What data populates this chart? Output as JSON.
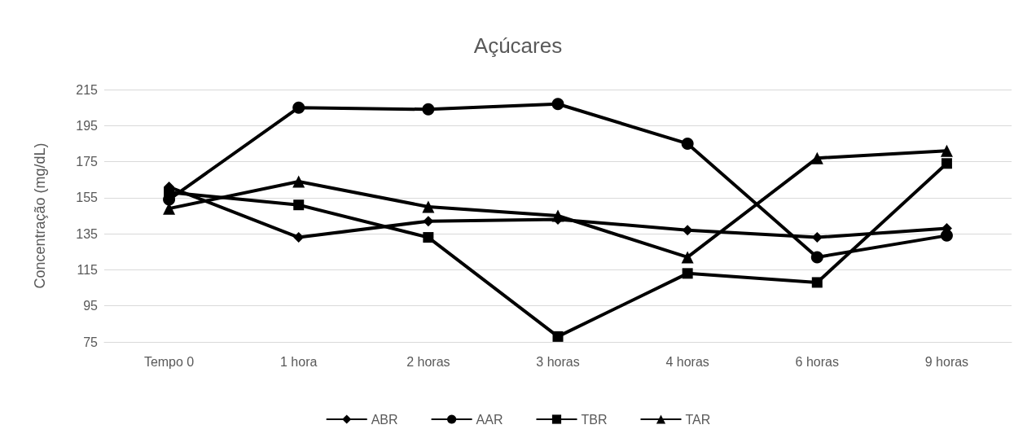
{
  "chart_data": {
    "type": "line",
    "title": "Açúcares",
    "ylabel": "Concentração (mg/dL)",
    "categories": [
      "Tempo 0",
      "1 hora",
      "2 horas",
      "3 horas",
      "4 horas",
      "6 horas",
      "9 horas"
    ],
    "series": [
      {
        "name": "ABR",
        "color": "#000000",
        "marker": "diamond",
        "values": [
          161,
          133,
          142,
          143,
          137,
          133,
          138
        ]
      },
      {
        "name": "AAR",
        "color": "#000000",
        "marker": "circle",
        "values": [
          154,
          205,
          204,
          207,
          185,
          122,
          134
        ]
      },
      {
        "name": "TBR",
        "color": "#000000",
        "marker": "square",
        "values": [
          158,
          151,
          133,
          78,
          113,
          108,
          174
        ]
      },
      {
        "name": "TAR",
        "color": "#000000",
        "marker": "triangle",
        "values": [
          149,
          164,
          150,
          145,
          122,
          177,
          181
        ]
      }
    ],
    "ylim": [
      75,
      215
    ],
    "yticks": [
      75,
      95,
      115,
      135,
      155,
      175,
      195,
      215
    ],
    "grid": "y",
    "legend": "bottom",
    "line_style": "solid"
  }
}
